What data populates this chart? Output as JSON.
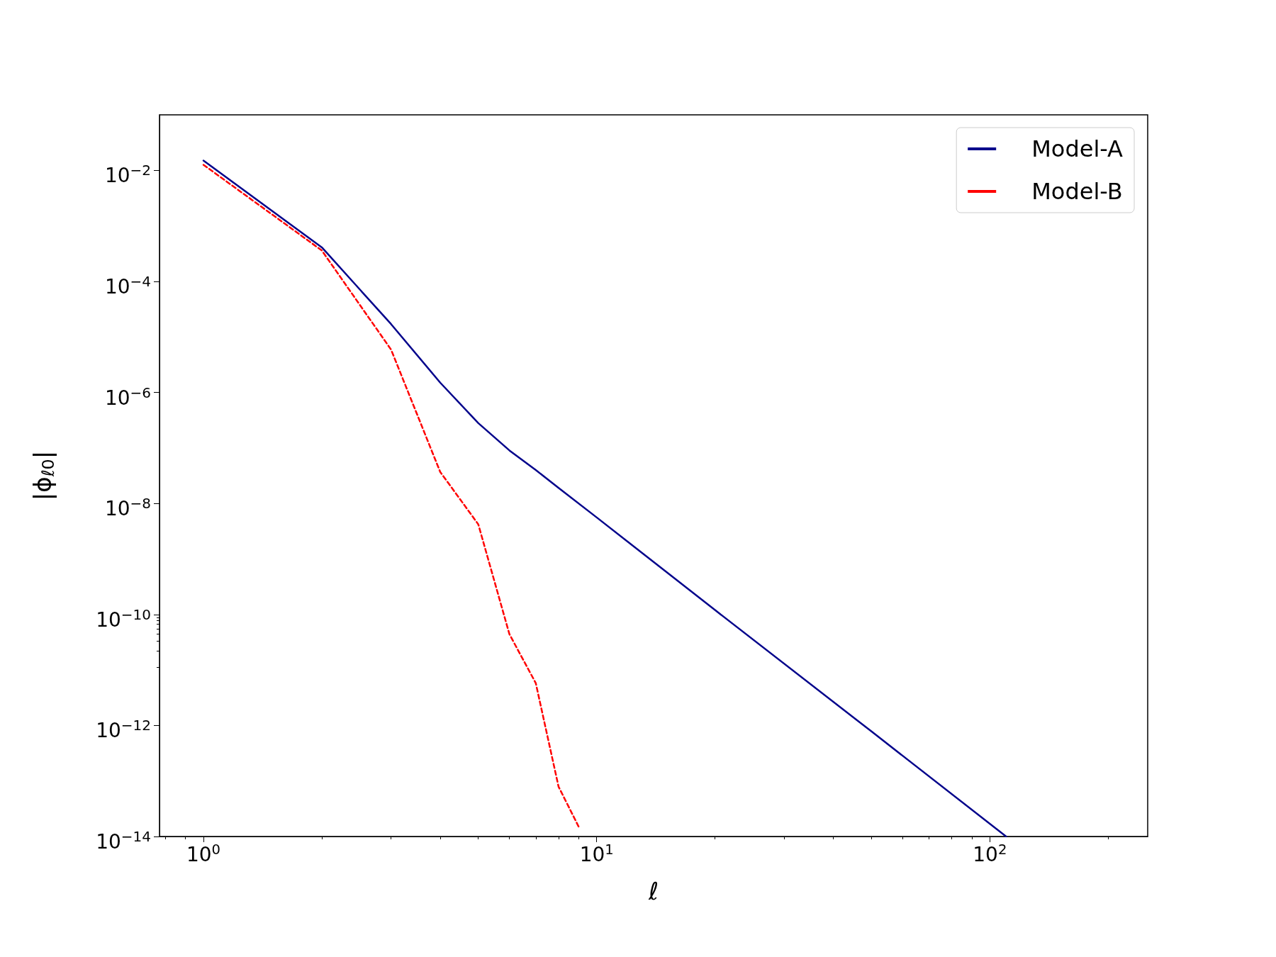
{
  "chart_data": {
    "type": "line",
    "xlabel": "ℓ",
    "ylabel": "|ϕ$_{ℓ0}$|",
    "log": "xy",
    "grid": false,
    "legend": "top right",
    "marker": "none",
    "xlim": [
      0.773,
      252
    ],
    "ylim": [
      1e-14,
      0.1
    ],
    "xticks": [
      {
        "value": 1,
        "label": "10$^{0}$"
      },
      {
        "value": 10,
        "label": "10$^{1}$"
      },
      {
        "value": 100,
        "label": "10$^{2}$"
      }
    ],
    "yticks": [
      {
        "value": 1e-14,
        "label": "10$^{−14}$"
      },
      {
        "value": 1e-12,
        "label": "10$^{−12}$"
      },
      {
        "value": 1e-10,
        "label": "10$^{−10}$"
      },
      {
        "value": 1e-08,
        "label": "10$^{−8}$"
      },
      {
        "value": 1e-06,
        "label": "10$^{−6}$"
      },
      {
        "value": 0.0001,
        "label": "10$^{−4}$"
      },
      {
        "value": 0.01,
        "label": "10$^{−2}$"
      }
    ],
    "series": [
      {
        "name": "Model-A",
        "color": "#00008b",
        "line_style": "solid",
        "x": [
          1,
          2,
          3,
          4,
          5,
          6,
          7,
          8,
          10,
          20,
          50,
          110
        ],
        "values": [
          0.015,
          0.00041,
          1.7e-05,
          1.5e-06,
          2.8e-07,
          9e-08,
          4e-08,
          1.9e-08,
          5.6e-09,
          1.2e-10,
          7.8e-13,
          1e-14
        ]
      },
      {
        "name": "Model-B",
        "color": "#ff0000",
        "line_style": "dashed",
        "x": [
          1,
          2,
          3,
          4,
          5,
          6,
          7,
          8,
          9
        ],
        "values": [
          0.0126,
          0.00036,
          5.9e-06,
          3.7e-08,
          4.2e-09,
          4.4e-11,
          5.8e-12,
          7.9e-14,
          1.5e-14
        ]
      }
    ]
  }
}
